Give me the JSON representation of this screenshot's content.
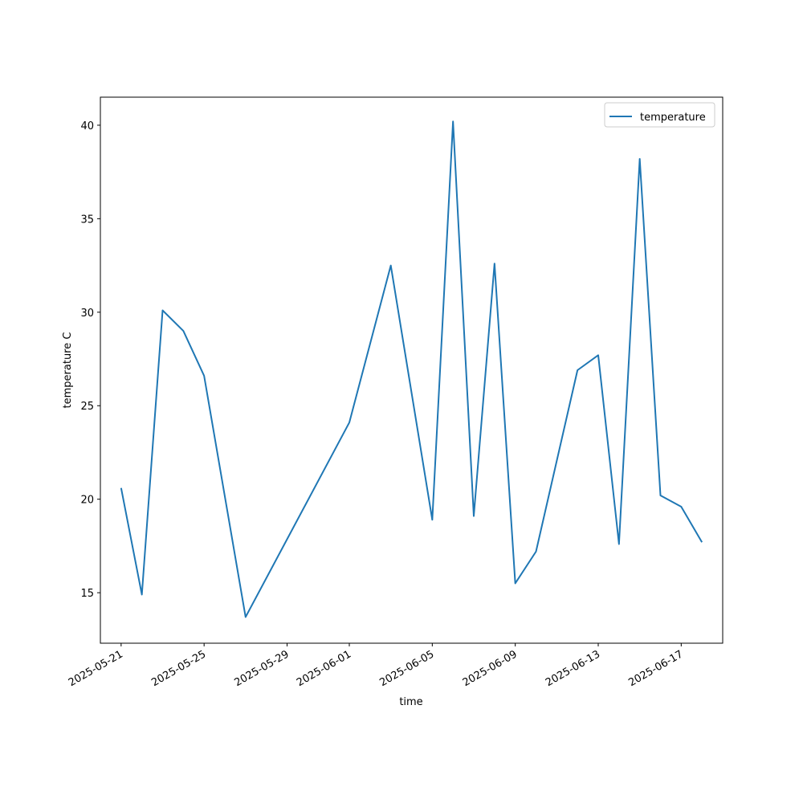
{
  "chart_data": {
    "type": "line",
    "x_label": "time",
    "y_label": "temperature C",
    "x": [
      "2025-05-21",
      "2025-05-22",
      "2025-05-23",
      "2025-05-24",
      "2025-05-25",
      "2025-05-27",
      "2025-06-01",
      "2025-06-03",
      "2025-06-05",
      "2025-06-06",
      "2025-06-07",
      "2025-06-08",
      "2025-06-09",
      "2025-06-10",
      "2025-06-12",
      "2025-06-13",
      "2025-06-14",
      "2025-06-15",
      "2025-06-16",
      "2025-06-17",
      "2025-06-18"
    ],
    "series": [
      {
        "name": "temperature",
        "color": "#1f77b4",
        "values": [
          20.6,
          14.9,
          30.1,
          29.0,
          26.6,
          13.7,
          24.1,
          32.5,
          18.9,
          40.2,
          19.1,
          32.6,
          15.5,
          17.2,
          26.9,
          27.7,
          17.6,
          38.2,
          20.2,
          19.6,
          17.7
        ]
      }
    ],
    "xlim": [
      "2025-05-20",
      "2025-06-19"
    ],
    "xticks": [
      "2025-05-21",
      "2025-05-25",
      "2025-05-29",
      "2025-06-01",
      "2025-06-05",
      "2025-06-09",
      "2025-06-13",
      "2025-06-17"
    ],
    "ylim": [
      12.3,
      41.5
    ],
    "yticks": [
      15,
      20,
      25,
      30,
      35,
      40
    ],
    "grid": false,
    "legend": "upper right"
  }
}
